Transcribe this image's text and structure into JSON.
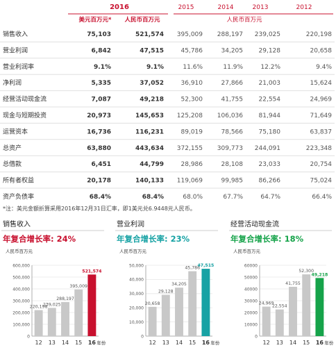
{
  "table": {
    "year_2016": "2016",
    "sub_usd": "美元百万元*",
    "sub_rmb": "人民币百万元",
    "years": [
      "2015",
      "2014",
      "2013",
      "2012"
    ],
    "years_unit": "人民币百万元",
    "rows": [
      {
        "label": "销售收入",
        "usd": "75,103",
        "rmb": "521,574",
        "v": [
          "395,009",
          "288,197",
          "239,025",
          "220,198"
        ]
      },
      {
        "label": "营业利润",
        "usd": "6,842",
        "rmb": "47,515",
        "v": [
          "45,786",
          "34,205",
          "29,128",
          "20,658"
        ]
      },
      {
        "label": "营业利润率",
        "usd": "9.1%",
        "rmb": "9.1%",
        "v": [
          "11.6%",
          "11.9%",
          "12.2%",
          "9.4%"
        ]
      },
      {
        "label": "净利润",
        "usd": "5,335",
        "rmb": "37,052",
        "v": [
          "36,910",
          "27,866",
          "21,003",
          "15,624"
        ]
      },
      {
        "label": "经营活动现金流",
        "usd": "7,087",
        "rmb": "49,218",
        "v": [
          "52,300",
          "41,755",
          "22,554",
          "24,969"
        ]
      },
      {
        "label": "现金与短期投资",
        "usd": "20,973",
        "rmb": "145,653",
        "v": [
          "125,208",
          "106,036",
          "81,944",
          "71,649"
        ]
      },
      {
        "label": "运营资本",
        "usd": "16,736",
        "rmb": "116,231",
        "v": [
          "89,019",
          "78,566",
          "75,180",
          "63,837"
        ]
      },
      {
        "label": "总资产",
        "usd": "63,880",
        "rmb": "443,634",
        "v": [
          "372,155",
          "309,773",
          "244,091",
          "223,348"
        ]
      },
      {
        "label": "总借款",
        "usd": "6,451",
        "rmb": "44,799",
        "v": [
          "28,986",
          "28,108",
          "23,033",
          "20,754"
        ]
      },
      {
        "label": "所有者权益",
        "usd": "20,178",
        "rmb": "140,133",
        "v": [
          "119,069",
          "99,985",
          "86,266",
          "75,024"
        ]
      },
      {
        "label": "资产负债率",
        "usd": "68.4%",
        "rmb": "68.4%",
        "v": [
          "68.0%",
          "67.7%",
          "64.7%",
          "66.4%"
        ]
      }
    ]
  },
  "note": "*注：美元金额折算采用2016年12月31日汇率，即1美元兑6.9448元人民币。",
  "colors": {
    "red": "#c8102e",
    "teal": "#17a2a4",
    "green": "#16a34a",
    "gray_bar": "#c8c8c8",
    "text": "#333333",
    "row_line": "#e0e0e0",
    "grid": "#e6e6e6"
  },
  "chart_data": [
    {
      "type": "bar",
      "title": "销售收入",
      "subtitle": "年复合增长率: 24%",
      "ylabel": "人民币百万元",
      "categories": [
        "12",
        "13",
        "14",
        "15",
        "16"
      ],
      "last_suffix": "年份",
      "values": [
        220198,
        239025,
        288197,
        395009,
        521574
      ],
      "value_labels": [
        "220,198",
        "239,025",
        "288,197",
        "395,009",
        "521,574"
      ],
      "ylim": [
        0,
        600000
      ],
      "yticks": [
        0,
        100000,
        200000,
        300000,
        400000,
        500000,
        600000
      ],
      "ytick_labels": [
        "0",
        "100,000",
        "200,000",
        "300,000",
        "400,000",
        "500,000",
        "600,000"
      ],
      "accent_color": "#c8102e",
      "highlight_color": "#c8102e",
      "grid": true
    },
    {
      "type": "bar",
      "title": "营业利润",
      "subtitle": "年复合增长率: 23%",
      "ylabel": "人民币百万元",
      "categories": [
        "12",
        "13",
        "14",
        "15",
        "16"
      ],
      "last_suffix": "年份",
      "values": [
        20658,
        29128,
        34205,
        45786,
        47515
      ],
      "value_labels": [
        "20,658",
        "29,128",
        "34,205",
        "45,786",
        "47,515"
      ],
      "ylim": [
        0,
        50000
      ],
      "yticks": [
        0,
        10000,
        20000,
        30000,
        40000,
        50000
      ],
      "ytick_labels": [
        "0",
        "10,000",
        "20,000",
        "30,000",
        "40,000",
        "50,000"
      ],
      "accent_color": "#17a2a4",
      "highlight_color": "#17a2a4",
      "grid": true
    },
    {
      "type": "bar",
      "title": "经营活动现金流",
      "subtitle": "年复合增长率: 18%",
      "ylabel": "人民币百万元",
      "categories": [
        "12",
        "13",
        "14",
        "15",
        "16"
      ],
      "last_suffix": "年份",
      "values": [
        24969,
        22554,
        41755,
        52300,
        49218
      ],
      "value_labels": [
        "24,969",
        "22,554",
        "41,755",
        "52,300",
        "49,218"
      ],
      "ylim": [
        0,
        60000
      ],
      "yticks": [
        0,
        10000,
        20000,
        30000,
        40000,
        50000,
        60000
      ],
      "ytick_labels": [
        "0",
        "10000",
        "20000",
        "30000",
        "40000",
        "50000",
        "60000"
      ],
      "accent_color": "#16a34a",
      "highlight_color": "#16a34a",
      "grid": true
    }
  ]
}
